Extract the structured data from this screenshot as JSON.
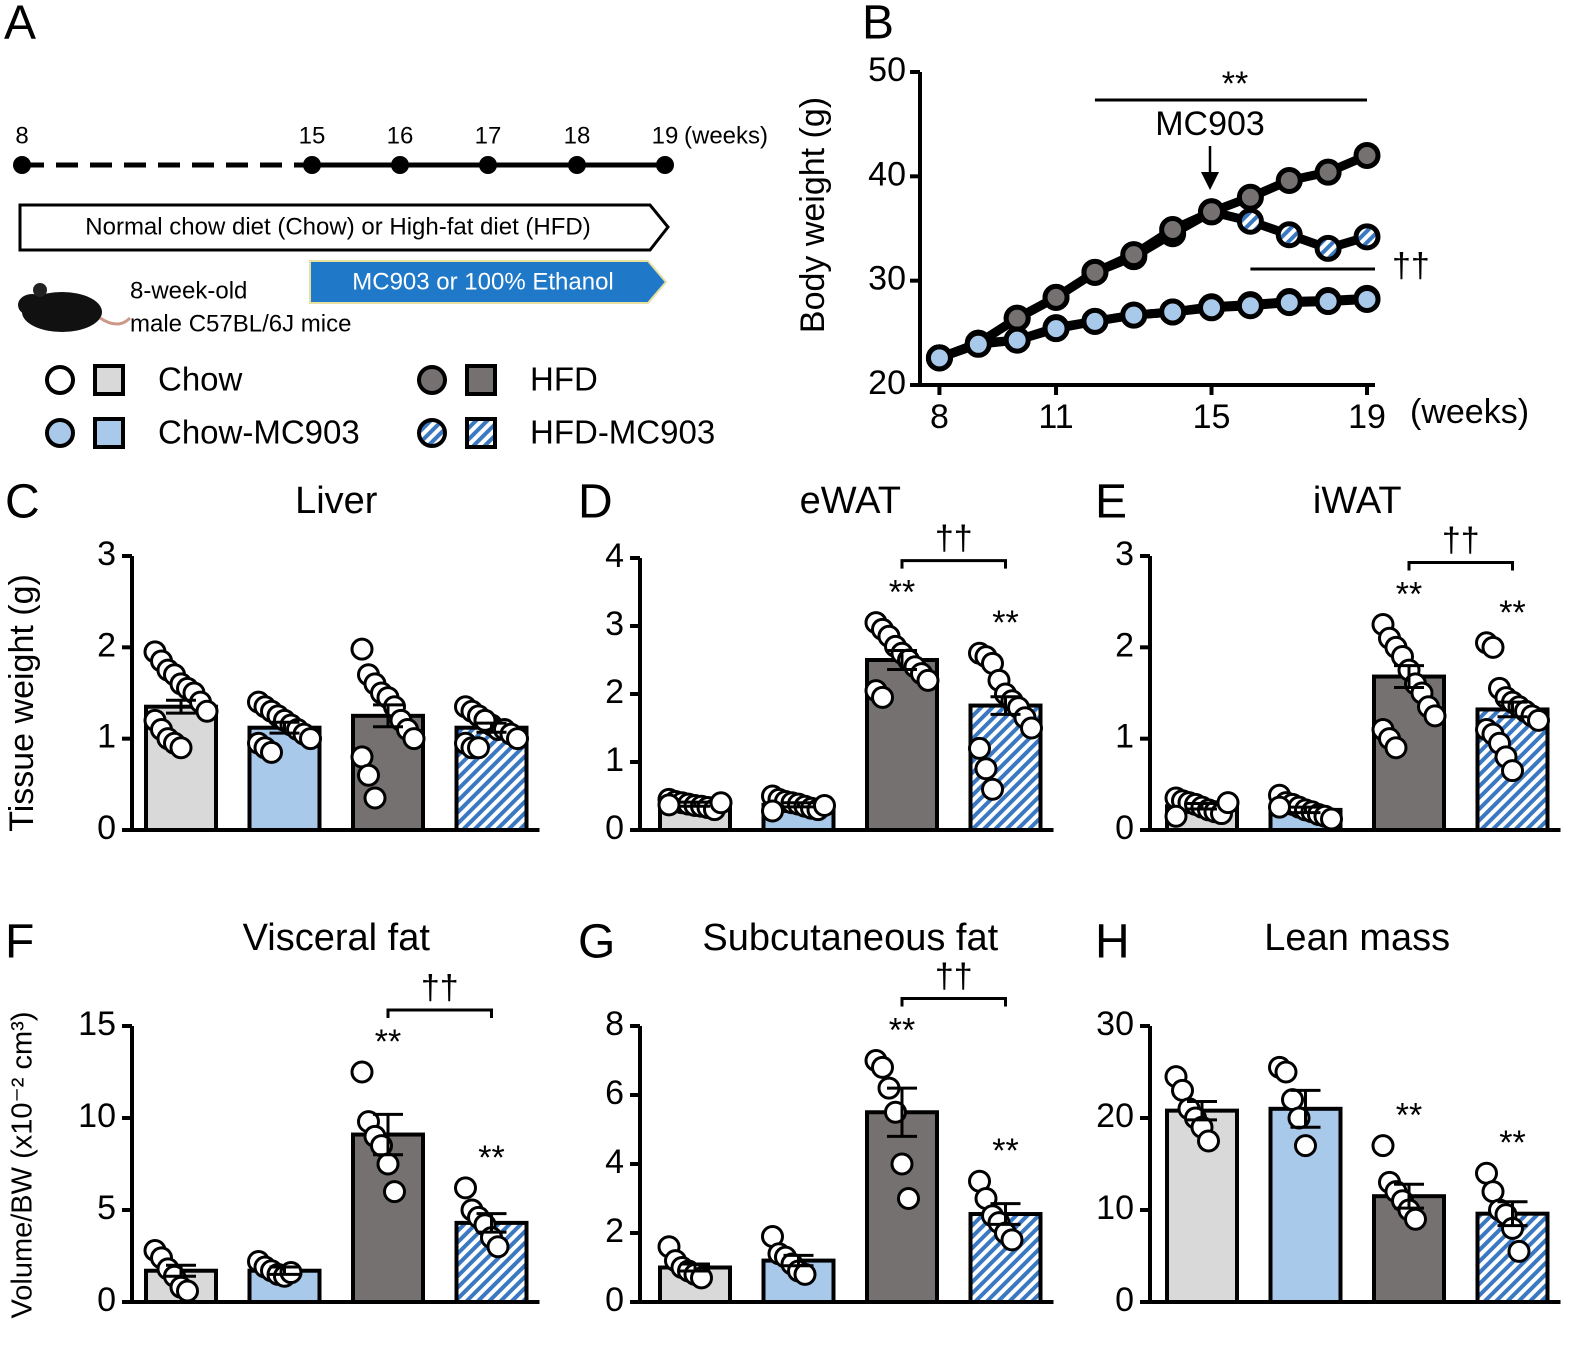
{
  "diagram": {
    "panel": "A",
    "timeline": [
      "8",
      "15",
      "16",
      "17",
      "18",
      "19"
    ],
    "timeline_unit": "(weeks)",
    "diet_arrow": "Normal chow diet (Chow) or High-fat diet (HFD)",
    "treatment_arrow": "MC903 or 100% Ethanol",
    "mice": [
      "8-week-old",
      "male C57BL/6J mice"
    ]
  },
  "chart_data": [
    {
      "type": "line",
      "panel": "B",
      "ylabel": "Body weight (g)",
      "xlabel": "(weeks)",
      "x": [
        8,
        9,
        10,
        11,
        12,
        13,
        14,
        15,
        16,
        17,
        18,
        19
      ],
      "xlim": [
        7.5,
        19
      ],
      "xticks": [
        8,
        11,
        15,
        19
      ],
      "ylim": [
        20,
        50
      ],
      "yticks": [
        20,
        30,
        40,
        50
      ],
      "annotations": [
        "**",
        "MC903",
        "††"
      ],
      "series": [
        {
          "name": "Chow",
          "color": "#ffffff",
          "values": [
            22.6,
            24.0,
            24.3,
            25.5,
            26.1,
            26.7,
            27.0,
            27.5,
            27.7,
            28.0,
            28.1,
            28.3
          ]
        },
        {
          "name": "Chow-MC903",
          "color": "#a9c9ea",
          "values": [
            22.6,
            23.9,
            24.3,
            25.4,
            26.1,
            26.7,
            27.0,
            27.4,
            27.6,
            27.9,
            28.0,
            28.2
          ]
        },
        {
          "name": "HFD",
          "color": "#767171",
          "values": [
            22.6,
            24.0,
            26.4,
            28.4,
            30.8,
            32.5,
            34.9,
            36.6,
            38.0,
            39.6,
            40.4,
            42.0
          ]
        },
        {
          "name": "HFD-MC903",
          "color": "#3a78c2",
          "pattern": "stripes",
          "values": [
            22.6,
            24.0,
            26.4,
            28.4,
            30.8,
            32.3,
            34.5,
            36.6,
            35.7,
            34.4,
            33.1,
            34.2
          ]
        }
      ]
    },
    {
      "type": "bar",
      "panel": "C",
      "title": "Liver",
      "ylabel": "Tissue weight (g)",
      "ylim": [
        0,
        3
      ],
      "yticks": [
        0,
        1,
        2,
        3
      ],
      "colors": [
        "#d9d9d9",
        "#a9c9ea",
        "#767171",
        "#3a78c2"
      ],
      "patterns": [
        null,
        null,
        null,
        "stripes"
      ],
      "values": [
        1.35,
        1.12,
        1.25,
        1.12
      ],
      "errors": [
        0.07,
        0.06,
        0.12,
        0.05
      ],
      "points": [
        [
          1.95,
          1.85,
          1.75,
          1.7,
          1.6,
          1.55,
          1.5,
          1.4,
          1.3,
          1.2,
          1.1,
          1.0,
          0.95,
          0.9
        ],
        [
          1.4,
          1.35,
          1.3,
          1.25,
          1.2,
          1.15,
          1.1,
          1.05,
          1.0,
          0.95,
          0.9,
          0.85
        ],
        [
          1.98,
          1.7,
          1.6,
          1.5,
          1.45,
          1.35,
          1.2,
          1.1,
          1.0,
          0.8,
          0.6,
          0.35
        ],
        [
          1.35,
          1.3,
          1.25,
          1.2,
          1.15,
          1.1,
          1.1,
          1.05,
          1.0,
          0.95,
          0.9,
          0.9,
          1.2
        ]
      ]
    },
    {
      "type": "bar",
      "panel": "D",
      "title": "eWAT",
      "ylim": [
        0,
        4
      ],
      "yticks": [
        0,
        1,
        2,
        3,
        4
      ],
      "colors": [
        "#d9d9d9",
        "#a9c9ea",
        "#767171",
        "#3a78c2"
      ],
      "patterns": [
        null,
        null,
        null,
        "stripes"
      ],
      "values": [
        0.38,
        0.37,
        2.5,
        1.83
      ],
      "errors": [
        0.03,
        0.03,
        0.14,
        0.13
      ],
      "significance": [
        null,
        null,
        "**",
        "**"
      ],
      "bracket_label": "††",
      "points": [
        [
          0.45,
          0.42,
          0.4,
          0.38,
          0.36,
          0.35,
          0.33,
          0.3,
          0.4,
          0.37
        ],
        [
          0.5,
          0.45,
          0.42,
          0.4,
          0.38,
          0.35,
          0.32,
          0.3,
          0.36,
          0.28
        ],
        [
          3.05,
          2.95,
          2.85,
          2.7,
          2.6,
          2.5,
          2.4,
          2.3,
          2.2,
          2.05,
          1.95
        ],
        [
          2.6,
          2.55,
          2.45,
          2.2,
          2.0,
          1.9,
          1.8,
          1.65,
          1.5,
          1.2,
          0.9,
          0.6
        ]
      ]
    },
    {
      "type": "bar",
      "panel": "E",
      "title": "iWAT",
      "ylim": [
        0,
        3
      ],
      "yticks": [
        0,
        1,
        2,
        3
      ],
      "colors": [
        "#d9d9d9",
        "#a9c9ea",
        "#767171",
        "#3a78c2"
      ],
      "patterns": [
        null,
        null,
        null,
        "stripes"
      ],
      "values": [
        0.26,
        0.22,
        1.68,
        1.32
      ],
      "errors": [
        0.03,
        0.03,
        0.12,
        0.08
      ],
      "significance": [
        null,
        null,
        "**",
        "**"
      ],
      "bracket_label": "††",
      "points": [
        [
          0.35,
          0.32,
          0.3,
          0.28,
          0.25,
          0.22,
          0.2,
          0.18,
          0.3,
          0.15
        ],
        [
          0.38,
          0.3,
          0.28,
          0.25,
          0.22,
          0.2,
          0.17,
          0.15,
          0.12,
          0.25
        ],
        [
          2.25,
          2.1,
          2.0,
          1.9,
          1.75,
          1.6,
          1.5,
          1.35,
          1.25,
          1.1,
          1.0,
          0.9
        ],
        [
          2.05,
          2.0,
          1.55,
          1.45,
          1.4,
          1.35,
          1.3,
          1.25,
          1.2,
          1.1,
          1.05,
          0.95,
          0.8,
          0.65
        ]
      ]
    },
    {
      "type": "bar",
      "panel": "F",
      "title": "Visceral fat",
      "ylabel": "Volume/BW (x10⁻² cm³)",
      "ylim": [
        0,
        15
      ],
      "yticks": [
        0,
        5,
        10,
        15
      ],
      "colors": [
        "#d9d9d9",
        "#a9c9ea",
        "#767171",
        "#3a78c2"
      ],
      "patterns": [
        null,
        null,
        null,
        "stripes"
      ],
      "values": [
        1.7,
        1.7,
        9.1,
        4.3
      ],
      "errors": [
        0.3,
        0.2,
        1.1,
        0.5
      ],
      "significance": [
        null,
        null,
        "**",
        "**"
      ],
      "bracket_label": "††",
      "points": [
        [
          2.8,
          2.4,
          1.8,
          1.4,
          0.8,
          0.6
        ],
        [
          2.2,
          1.9,
          1.7,
          1.5,
          1.4,
          1.6
        ],
        [
          12.5,
          9.8,
          9.0,
          8.5,
          7.5,
          6.0
        ],
        [
          6.2,
          5.0,
          4.6,
          4.2,
          3.5,
          3.0
        ]
      ]
    },
    {
      "type": "bar",
      "panel": "G",
      "title": "Subcutaneous fat",
      "ylim": [
        0,
        8
      ],
      "yticks": [
        0,
        2,
        4,
        6,
        8
      ],
      "colors": [
        "#d9d9d9",
        "#a9c9ea",
        "#767171",
        "#3a78c2"
      ],
      "patterns": [
        null,
        null,
        null,
        "stripes"
      ],
      "values": [
        1.0,
        1.2,
        5.5,
        2.55
      ],
      "errors": [
        0.1,
        0.15,
        0.7,
        0.3
      ],
      "significance": [
        null,
        null,
        "**",
        "**"
      ],
      "bracket_label": "††",
      "points": [
        [
          1.6,
          1.2,
          1.0,
          0.9,
          0.8,
          0.7
        ],
        [
          1.9,
          1.4,
          1.3,
          1.1,
          0.9,
          0.8
        ],
        [
          7.0,
          6.8,
          6.2,
          5.5,
          4.0,
          3.0
        ],
        [
          3.5,
          3.0,
          2.5,
          2.3,
          2.0,
          1.8
        ]
      ]
    },
    {
      "type": "bar",
      "panel": "H",
      "title": "Lean mass",
      "ylim": [
        0,
        30
      ],
      "yticks": [
        0,
        10,
        20,
        30
      ],
      "colors": [
        "#d9d9d9",
        "#a9c9ea",
        "#767171",
        "#3a78c2"
      ],
      "patterns": [
        null,
        null,
        null,
        "stripes"
      ],
      "values": [
        20.8,
        21.0,
        11.5,
        9.6
      ],
      "errors": [
        1.0,
        2.0,
        1.3,
        1.3
      ],
      "significance": [
        null,
        null,
        "**",
        "**"
      ],
      "points": [
        [
          24.5,
          23,
          21,
          20,
          19,
          17.5
        ],
        [
          25.5,
          25,
          22,
          20,
          17
        ],
        [
          17,
          13,
          12,
          11,
          10,
          9
        ],
        [
          14,
          12,
          10,
          9.5,
          8,
          5.5
        ]
      ]
    }
  ]
}
